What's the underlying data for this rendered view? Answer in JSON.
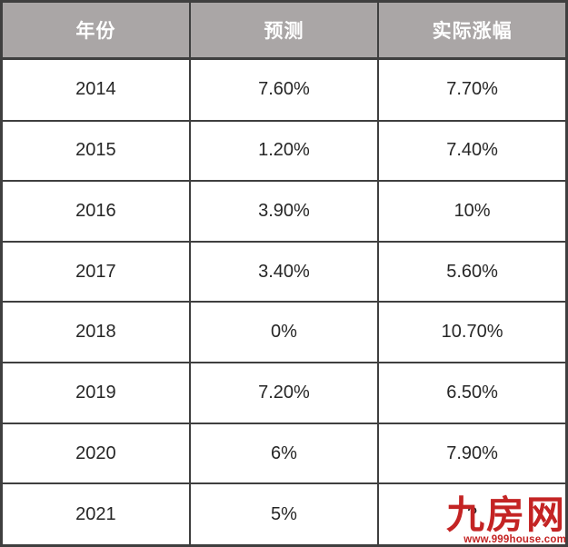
{
  "chart_data": {
    "type": "table",
    "columns": [
      "年份",
      "预测",
      "实际涨幅"
    ],
    "rows": [
      [
        "2014",
        "7.60%",
        "7.70%"
      ],
      [
        "2015",
        "1.20%",
        "7.40%"
      ],
      [
        "2016",
        "3.90%",
        "10%"
      ],
      [
        "2017",
        "3.40%",
        "5.60%"
      ],
      [
        "2018",
        "0%",
        "10.70%"
      ],
      [
        "2019",
        "7.20%",
        "6.50%"
      ],
      [
        "2020",
        "6%",
        "7.90%"
      ],
      [
        "2021",
        "5%",
        "?"
      ]
    ]
  },
  "watermark": {
    "logo_text": "九房网",
    "url_text": "www.999house.com"
  },
  "colors": {
    "header_bg": "#aaa6a6",
    "header_text": "#ffffff",
    "border": "#3f3f3f",
    "cell_text": "#262626",
    "watermark_red": "#c42424",
    "background": "#ffffff"
  }
}
